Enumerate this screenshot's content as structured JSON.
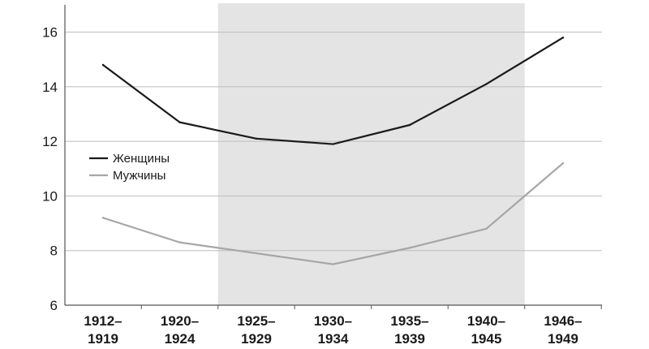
{
  "chart_data": {
    "type": "line",
    "categories": [
      "1912–1919",
      "1920–1924",
      "1925–1929",
      "1930–1934",
      "1935–1939",
      "1940–1945",
      "1946–1949"
    ],
    "category_lines": [
      [
        "1912–",
        "1919"
      ],
      [
        "1920–",
        "1924"
      ],
      [
        "1925–",
        "1929"
      ],
      [
        "1930–",
        "1934"
      ],
      [
        "1935–",
        "1939"
      ],
      [
        "1940–",
        "1945"
      ],
      [
        "1946–",
        "1949"
      ]
    ],
    "series": [
      {
        "name": "Женщины",
        "color": "#1a1a1a",
        "values": [
          14.8,
          12.7,
          12.1,
          11.9,
          12.6,
          14.1,
          15.8
        ]
      },
      {
        "name": "Мужчины",
        "color": "#a6a6a6",
        "values": [
          9.2,
          8.3,
          7.9,
          7.5,
          8.1,
          8.8,
          11.2
        ]
      }
    ],
    "ylim": [
      6,
      17
    ],
    "yticks": [
      6,
      8,
      10,
      12,
      14,
      16
    ],
    "grid": true,
    "shaded_range": {
      "from": "1925–1929",
      "to": "1940–1945",
      "color": "#e4e4e4"
    },
    "legend_position": "middle-left",
    "title": "",
    "xlabel": "",
    "ylabel": ""
  }
}
